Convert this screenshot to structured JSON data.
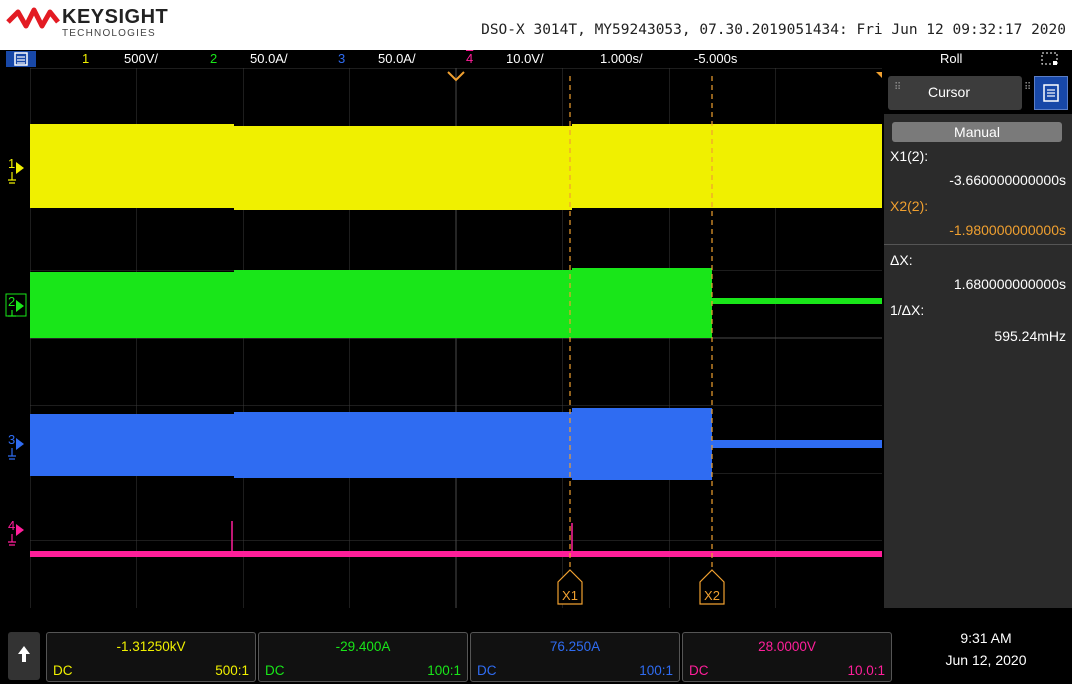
{
  "header": {
    "brand": "KEYSIGHT",
    "brand_sub": "TECHNOLOGIES",
    "instrument_info": "DSO-X 3014T, MY59243053, 07.30.2019051434: Fri Jun 12 09:32:17 2020"
  },
  "status": {
    "ch1": {
      "num": "1",
      "scale": "500V/"
    },
    "ch2": {
      "num": "2",
      "scale": "50.0A/"
    },
    "ch3": {
      "num": "3",
      "scale": "50.0A/"
    },
    "ch4": {
      "num": "4",
      "scale": "10.0V/"
    },
    "timebase": "1.000s/",
    "delay": "-5.000s",
    "mode": "Roll"
  },
  "colors": {
    "ch1": "#f0f000",
    "ch2": "#19e619",
    "ch3": "#2f6cf2",
    "ch4": "#ff1f9a",
    "cursor": "#f0a030"
  },
  "markers": {
    "ch1": "1",
    "ch2": "2",
    "ch3": "3",
    "ch4": "4",
    "x1": "X1",
    "x2": "X2"
  },
  "cursor_panel": {
    "title": "Cursor",
    "mode": "Manual",
    "x1_label": "X1(2):",
    "x1_value": "-3.660000000000s",
    "x2_label": "X2(2):",
    "x2_value": "-1.980000000000s",
    "dx_label": "ΔX:",
    "dx_value": "1.680000000000s",
    "inv_dx_label": "1/ΔX:",
    "inv_dx_value": "595.24mHz"
  },
  "channels": [
    {
      "value": "-1.31250kV",
      "coupling": "DC",
      "probe": "500:1"
    },
    {
      "value": "-29.400A",
      "coupling": "DC",
      "probe": "100:1"
    },
    {
      "value": "76.250A",
      "coupling": "DC",
      "probe": "100:1"
    },
    {
      "value": "28.0000V",
      "coupling": "DC",
      "probe": "10.0:1"
    }
  ],
  "clock": {
    "time": "9:31 AM",
    "date": "Jun 12, 2020"
  }
}
